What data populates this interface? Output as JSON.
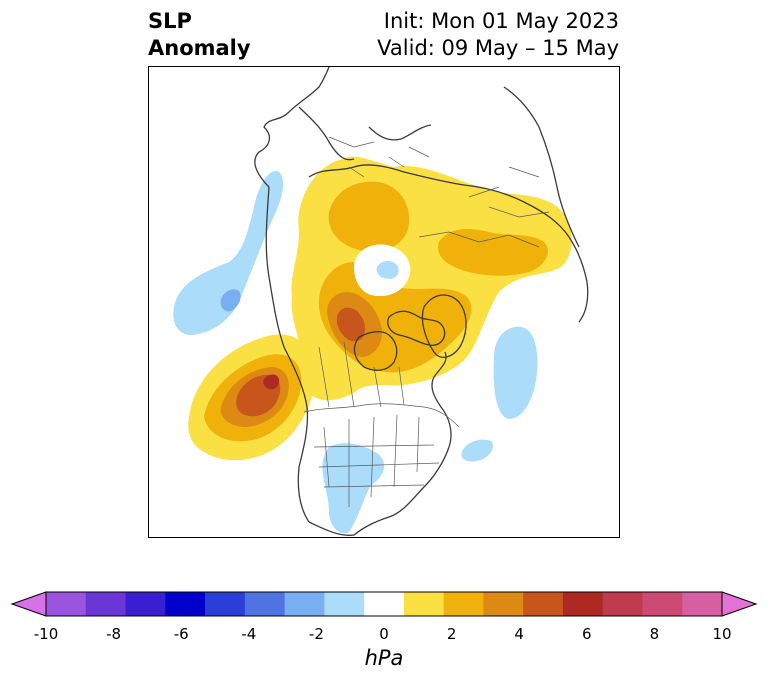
{
  "title": {
    "left_line1": "SLP",
    "left_line2": "Anomaly",
    "right_line1": "Init: Mon 01 May 2023",
    "right_line2": "Valid: 09 May – 15 May"
  },
  "map": {
    "projection": "polar-stereographic",
    "region": "North America / North Pole",
    "field": "SLP anomaly"
  },
  "colorbar": {
    "unit": "hPa",
    "ticks": [
      "-10",
      "-8",
      "-6",
      "-4",
      "-2",
      "0",
      "2",
      "4",
      "6",
      "8",
      "10"
    ],
    "extend": "both",
    "colors": [
      "#d672e8",
      "#9a55e0",
      "#6a37d6",
      "#3a1ed2",
      "#0000cc",
      "#2a3fd8",
      "#4f74e2",
      "#78aef2",
      "#abdcfa",
      "#ffffff",
      "#fbe044",
      "#efb10a",
      "#dc8a14",
      "#c8561c",
      "#ae2824",
      "#c03a4e",
      "#cc4a74",
      "#d85ea4",
      "#e472d6"
    ]
  },
  "anomalies": [
    {
      "name": "pacific-high",
      "sign": "positive",
      "peak_hpa": 7
    },
    {
      "name": "arctic-canada-high",
      "sign": "positive",
      "peak_hpa": 6
    },
    {
      "name": "eurasia-high",
      "sign": "positive",
      "peak_hpa": 3
    },
    {
      "name": "north-pacific-low",
      "sign": "negative",
      "peak_hpa": -3
    },
    {
      "name": "north-atlantic-low",
      "sign": "negative",
      "peak_hpa": -2
    },
    {
      "name": "central-us-low",
      "sign": "negative",
      "peak_hpa": -2
    }
  ]
}
